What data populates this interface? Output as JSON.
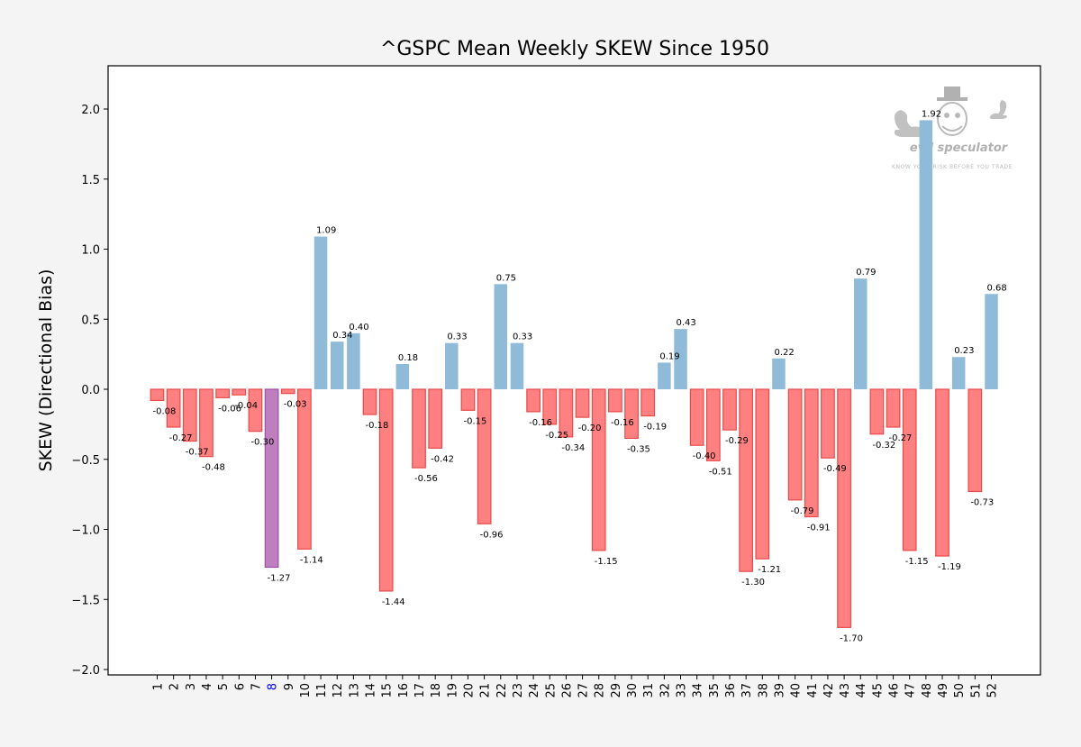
{
  "chart_data": {
    "type": "bar",
    "title": "^GSPC Mean Weekly SKEW Since 1950",
    "xlabel": "",
    "ylabel": "SKEW (Directional Bias)",
    "ylim": [
      -2.05,
      2.3
    ],
    "yticks": [
      2.0,
      1.5,
      1.0,
      0.5,
      0.0,
      -0.5,
      -1.0,
      -1.5,
      -2.0
    ],
    "ytick_labels": [
      "2.0",
      "1.5",
      "1.0",
      "0.5",
      "0.0",
      "−0.5",
      "−1.0",
      "−1.5",
      "−2.0"
    ],
    "categories": [
      "1",
      "2",
      "3",
      "4",
      "5",
      "6",
      "7",
      "8",
      "9",
      "10",
      "11",
      "12",
      "13",
      "14",
      "15",
      "16",
      "17",
      "18",
      "19",
      "20",
      "21",
      "22",
      "23",
      "24",
      "25",
      "26",
      "27",
      "28",
      "29",
      "30",
      "31",
      "32",
      "33",
      "34",
      "35",
      "36",
      "37",
      "38",
      "39",
      "40",
      "41",
      "42",
      "43",
      "44",
      "45",
      "46",
      "47",
      "48",
      "49",
      "50",
      "51",
      "52"
    ],
    "values": [
      -0.08,
      -0.27,
      -0.37,
      -0.48,
      -0.06,
      -0.04,
      -0.3,
      -1.27,
      -0.03,
      -1.14,
      1.09,
      0.34,
      0.4,
      -0.18,
      -1.44,
      0.18,
      -0.56,
      -0.42,
      0.33,
      -0.15,
      -0.96,
      0.75,
      0.33,
      -0.16,
      -0.25,
      -0.34,
      -0.2,
      -1.15,
      -0.16,
      -0.35,
      -0.19,
      0.19,
      0.43,
      -0.4,
      -0.51,
      -0.29,
      -1.3,
      -1.21,
      0.22,
      -0.79,
      -0.91,
      -0.49,
      -1.7,
      0.79,
      -0.32,
      -0.27,
      -1.15,
      1.92,
      -1.19,
      0.23,
      -0.73,
      0.68
    ],
    "data_labels": [
      "-0.08",
      "-0.27",
      "-0.37",
      "-0.48",
      "-0.06",
      "-0.04",
      "-0.30",
      "-1.27",
      "-0.03",
      "-1.14",
      "1.09",
      "0.34",
      "0.40",
      "-0.18",
      "-1.44",
      "0.18",
      "-0.56",
      "-0.42",
      "0.33",
      "-0.15",
      "-0.96",
      "0.75",
      "0.33",
      "-0.16",
      "-0.25",
      "-0.34",
      "-0.20",
      "-1.15",
      "-0.16",
      "-0.35",
      "-0.19",
      "0.19",
      "0.43",
      "-0.40",
      "-0.51",
      "-0.29",
      "-1.30",
      "-1.21",
      "0.22",
      "-0.79",
      "-0.91",
      "-0.49",
      "-1.70",
      "0.79",
      "-0.32",
      "-0.27",
      "-1.15",
      "1.92",
      "-1.19",
      "0.23",
      "-0.73",
      "0.68"
    ],
    "highlight_index": 7,
    "colors": {
      "positive": "#8fbad8",
      "negative_fill": "#ff8080",
      "negative_edge": "#e84a4a",
      "highlight_fill": "#bf7fbf",
      "highlight_edge": "#9c4fa8",
      "highlight_tick": "#0000ff",
      "background": "#f4f4f4",
      "plot_background": "#ffffff"
    },
    "grid": false,
    "legend": "none"
  },
  "watermark": {
    "name": "evil speculator",
    "tagline": "KNOW YOUR RISK BEFORE YOU TRADE"
  }
}
